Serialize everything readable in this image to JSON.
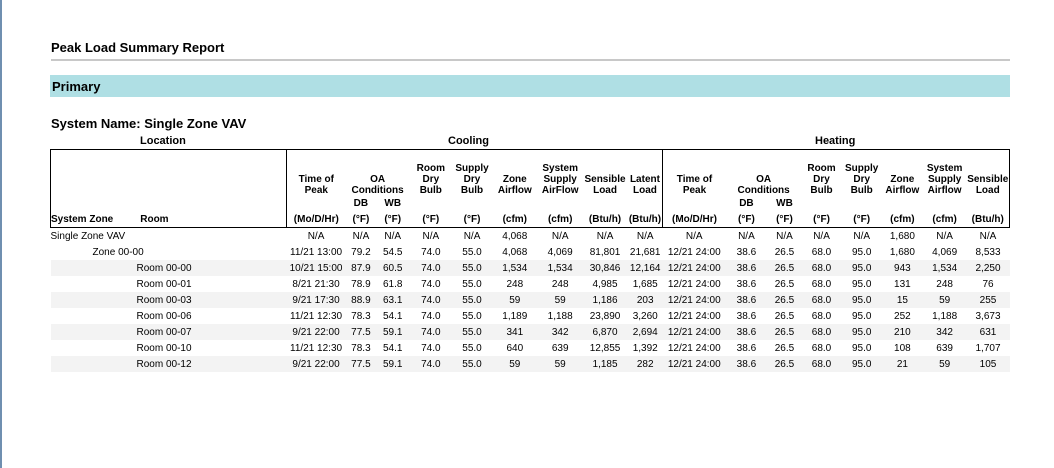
{
  "report": {
    "title": "Peak Load Summary Report",
    "section": "Primary",
    "system_name_label": "System Name:",
    "system_name": "Single Zone VAV"
  },
  "groups": {
    "location": "Location",
    "cooling": "Cooling",
    "heating": "Heating"
  },
  "headers": {
    "system_zone": "System Zone",
    "room": "Room",
    "cooling": {
      "time_of_peak": [
        "Time of",
        "Peak"
      ],
      "oa_conditions": [
        "OA",
        "Conditions"
      ],
      "room_dry_bulb": [
        "Room",
        "Dry",
        "Bulb"
      ],
      "supply_dry_bulb": [
        "Supply",
        "Dry",
        "Bulb"
      ],
      "zone_airflow": [
        "Zone",
        "Airflow"
      ],
      "system_supply_airflow": [
        "System",
        "Supply",
        "AirFlow"
      ],
      "sensible_load": [
        "Sensible",
        "Load"
      ],
      "latent_load": [
        "Latent",
        "Load"
      ]
    },
    "heating": {
      "time_of_peak": [
        "Time of",
        "Peak"
      ],
      "oa_conditions": [
        "OA",
        "Conditions"
      ],
      "room_dry_bulb": [
        "Room",
        "Dry",
        "Bulb"
      ],
      "supply_dry_bulb": [
        "Supply",
        "Dry",
        "Bulb"
      ],
      "zone_airflow": [
        "Zone",
        "Airflow"
      ],
      "system_supply_airflow": [
        "System",
        "Supply",
        "Airflow"
      ],
      "sensible_load": [
        "Sensible",
        "Load"
      ]
    },
    "sub": {
      "db": "DB",
      "wb": "WB"
    },
    "units": {
      "cooling": [
        "(Mo/D/Hr)",
        "(°F)",
        "(°F)",
        "(°F)",
        "(°F)",
        "(cfm)",
        "(cfm)",
        "(Btu/h)",
        "(Btu/h)"
      ],
      "heating": [
        "(Mo/D/Hr)",
        "(°F)",
        "(°F)",
        "(°F)",
        "(°F)",
        "(cfm)",
        "(cfm)",
        "(Btu/h)"
      ]
    }
  },
  "rows": [
    {
      "name": "Single Zone VAV",
      "level": 0,
      "values": [
        "N/A",
        "N/A",
        "N/A",
        "N/A",
        "N/A",
        "4,068",
        "N/A",
        "N/A",
        "N/A",
        "N/A",
        "N/A",
        "N/A",
        "N/A",
        "N/A",
        "1,680",
        "N/A",
        "N/A"
      ]
    },
    {
      "name": "Zone 00-00",
      "level": 1,
      "values": [
        "11/21 13:00",
        "79.2",
        "54.5",
        "74.0",
        "55.0",
        "4,068",
        "4,069",
        "81,801",
        "21,681",
        "12/21 24:00",
        "38.6",
        "26.5",
        "68.0",
        "95.0",
        "1,680",
        "4,069",
        "8,533"
      ]
    },
    {
      "name": "Room 00-00",
      "level": 2,
      "values": [
        "10/21 15:00",
        "87.9",
        "60.5",
        "74.0",
        "55.0",
        "1,534",
        "1,534",
        "30,846",
        "12,164",
        "12/21 24:00",
        "38.6",
        "26.5",
        "68.0",
        "95.0",
        "943",
        "1,534",
        "2,250"
      ]
    },
    {
      "name": "Room 00-01",
      "level": 2,
      "values": [
        "8/21 21:30",
        "78.9",
        "61.8",
        "74.0",
        "55.0",
        "248",
        "248",
        "4,985",
        "1,685",
        "12/21 24:00",
        "38.6",
        "26.5",
        "68.0",
        "95.0",
        "131",
        "248",
        "76"
      ]
    },
    {
      "name": "Room 00-03",
      "level": 2,
      "values": [
        "9/21 17:30",
        "88.9",
        "63.1",
        "74.0",
        "55.0",
        "59",
        "59",
        "1,186",
        "203",
        "12/21 24:00",
        "38.6",
        "26.5",
        "68.0",
        "95.0",
        "15",
        "59",
        "255"
      ]
    },
    {
      "name": "Room 00-06",
      "level": 2,
      "values": [
        "11/21 12:30",
        "78.3",
        "54.1",
        "74.0",
        "55.0",
        "1,189",
        "1,188",
        "23,890",
        "3,260",
        "12/21 24:00",
        "38.6",
        "26.5",
        "68.0",
        "95.0",
        "252",
        "1,188",
        "3,673"
      ]
    },
    {
      "name": "Room 00-07",
      "level": 2,
      "values": [
        "9/21 22:00",
        "77.5",
        "59.1",
        "74.0",
        "55.0",
        "341",
        "342",
        "6,870",
        "2,694",
        "12/21 24:00",
        "38.6",
        "26.5",
        "68.0",
        "95.0",
        "210",
        "342",
        "631"
      ]
    },
    {
      "name": "Room 00-10",
      "level": 2,
      "values": [
        "11/21 12:30",
        "78.3",
        "54.1",
        "74.0",
        "55.0",
        "640",
        "639",
        "12,855",
        "1,392",
        "12/21 24:00",
        "38.6",
        "26.5",
        "68.0",
        "95.0",
        "108",
        "639",
        "1,707"
      ]
    },
    {
      "name": "Room 00-12",
      "level": 2,
      "values": [
        "9/21 22:00",
        "77.5",
        "59.1",
        "74.0",
        "55.0",
        "59",
        "59",
        "1,185",
        "282",
        "12/21 24:00",
        "38.6",
        "26.5",
        "68.0",
        "95.0",
        "21",
        "59",
        "105"
      ]
    }
  ]
}
